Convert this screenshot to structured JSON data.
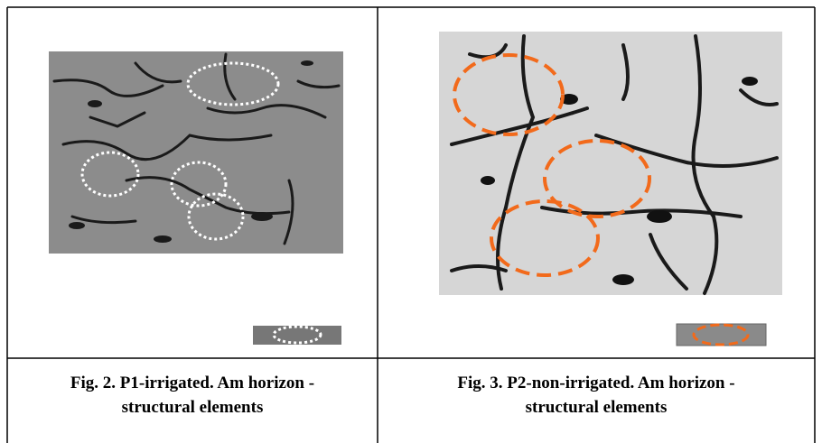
{
  "figures": [
    {
      "caption": [
        "Fig. 2. P1-irrigated. Am horizon -",
        "structural elements"
      ]
    },
    {
      "caption": [
        "Fig. 3. P2-non-irrigated. Am horizon -",
        "structural elements"
      ]
    }
  ]
}
